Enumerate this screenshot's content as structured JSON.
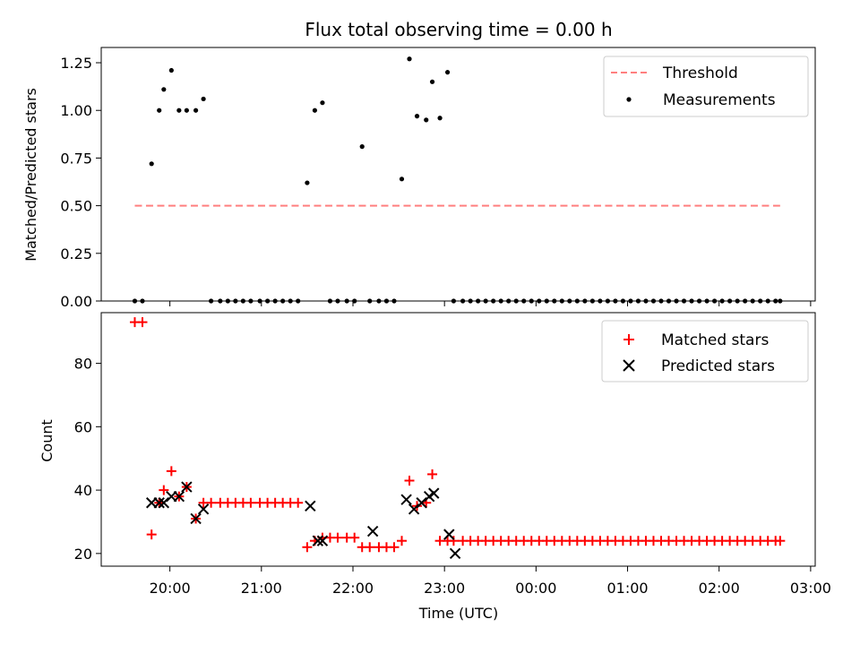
{
  "title": "Flux total observing time = 0.00 h",
  "colors": {
    "threshold": "#ff7f7f",
    "measurement": "#000000",
    "matched": "#ff0000",
    "predicted": "#000000"
  },
  "chart_data": [
    {
      "type": "scatter",
      "ylabel": "Matched/Predicted stars",
      "ylim": [
        0,
        1.33
      ],
      "yticks": [
        0.0,
        0.25,
        0.5,
        0.75,
        1.0,
        1.25
      ],
      "ytick_labels": [
        "0.00",
        "0.25",
        "0.50",
        "0.75",
        "1.00",
        "1.25"
      ],
      "legend_position": "upper right",
      "legend": [
        "Threshold",
        "Measurements"
      ],
      "threshold": {
        "name": "Threshold",
        "value": 0.5,
        "x_start": "19:37",
        "x_end": "02:40"
      },
      "series": [
        {
          "name": "Measurements",
          "x": [
            "19:37",
            "19:42",
            "19:48",
            "19:53",
            "19:56",
            "20:01",
            "20:06",
            "20:11",
            "20:17",
            "20:22",
            "20:27",
            "20:33",
            "20:38",
            "20:43",
            "20:48",
            "20:53",
            "20:59",
            "21:04",
            "21:09",
            "21:14",
            "21:19",
            "21:24",
            "21:30",
            "21:35",
            "21:40",
            "21:45",
            "21:50",
            "21:56",
            "22:01",
            "22:06",
            "22:11",
            "22:17",
            "22:22",
            "22:27",
            "22:32",
            "22:37",
            "22:42",
            "22:48",
            "22:52",
            "22:57",
            "23:02",
            "23:06",
            "23:12",
            "23:17",
            "23:22",
            "23:27",
            "23:32",
            "23:37",
            "23:42",
            "23:47",
            "23:52",
            "23:57",
            "00:02",
            "00:07",
            "00:12",
            "00:17",
            "00:22",
            "00:27",
            "00:32",
            "00:37",
            "00:42",
            "00:47",
            "00:52",
            "00:57",
            "01:02",
            "01:07",
            "01:12",
            "01:17",
            "01:22",
            "01:27",
            "01:32",
            "01:37",
            "01:42",
            "01:47",
            "01:52",
            "01:57",
            "02:02",
            "02:07",
            "02:12",
            "02:17",
            "02:22",
            "02:27",
            "02:32",
            "02:37",
            "02:40"
          ],
          "y": [
            0,
            0,
            0.72,
            1.0,
            1.11,
            1.21,
            1.0,
            1.0,
            1.0,
            1.06,
            0,
            0,
            0,
            0,
            0,
            0,
            0,
            0,
            0,
            0,
            0,
            0,
            0.62,
            1.0,
            1.04,
            0,
            0,
            0,
            0,
            0.81,
            0,
            0,
            0,
            0,
            0.64,
            1.27,
            0.97,
            0.95,
            1.15,
            0.96,
            1.2,
            0,
            0,
            0,
            0,
            0,
            0,
            0,
            0,
            0,
            0,
            0,
            0,
            0,
            0,
            0,
            0,
            0,
            0,
            0,
            0,
            0,
            0,
            0,
            0,
            0,
            0,
            0,
            0,
            0,
            0,
            0,
            0,
            0,
            0,
            0,
            0,
            0,
            0,
            0,
            0,
            0,
            0,
            0,
            0
          ]
        }
      ]
    },
    {
      "type": "scatter",
      "xlabel": "Time (UTC)",
      "ylabel": "Count",
      "ylim": [
        16,
        96
      ],
      "xlim": [
        "19:15",
        "03:03"
      ],
      "yticks": [
        20,
        40,
        60,
        80
      ],
      "xticks": [
        "20:00",
        "21:00",
        "22:00",
        "23:00",
        "00:00",
        "01:00",
        "02:00",
        "03:00"
      ],
      "legend_position": "upper right",
      "legend": [
        "Matched stars",
        "Predicted stars"
      ],
      "series": [
        {
          "name": "Matched stars",
          "x": [
            "19:37",
            "19:42",
            "19:48",
            "19:53",
            "19:56",
            "20:01",
            "20:06",
            "20:11",
            "20:17",
            "20:22",
            "20:27",
            "20:33",
            "20:38",
            "20:43",
            "20:48",
            "20:53",
            "20:59",
            "21:04",
            "21:09",
            "21:14",
            "21:19",
            "21:24",
            "21:30",
            "21:35",
            "21:40",
            "21:45",
            "21:50",
            "21:56",
            "22:01",
            "22:06",
            "22:11",
            "22:17",
            "22:22",
            "22:27",
            "22:32",
            "22:37",
            "22:42",
            "22:48",
            "22:52",
            "22:57",
            "23:02",
            "23:06",
            "23:12",
            "23:17",
            "23:22",
            "23:27",
            "23:32",
            "23:37",
            "23:42",
            "23:47",
            "23:52",
            "23:57",
            "00:02",
            "00:07",
            "00:12",
            "00:17",
            "00:22",
            "00:27",
            "00:32",
            "00:37",
            "00:42",
            "00:47",
            "00:52",
            "00:57",
            "01:02",
            "01:07",
            "01:12",
            "01:17",
            "01:22",
            "01:27",
            "01:32",
            "01:37",
            "01:42",
            "01:47",
            "01:52",
            "01:57",
            "02:02",
            "02:07",
            "02:12",
            "02:17",
            "02:22",
            "02:27",
            "02:32",
            "02:37",
            "02:40"
          ],
          "y": [
            93,
            93,
            26,
            36,
            40,
            46,
            38,
            41,
            31,
            36,
            36,
            36,
            36,
            36,
            36,
            36,
            36,
            36,
            36,
            36,
            36,
            36,
            22,
            24,
            25,
            25,
            25,
            25,
            25,
            22,
            22,
            22,
            22,
            22,
            24,
            43,
            35,
            36,
            45,
            24,
            24,
            24,
            24,
            24,
            24,
            24,
            24,
            24,
            24,
            24,
            24,
            24,
            24,
            24,
            24,
            24,
            24,
            24,
            24,
            24,
            24,
            24,
            24,
            24,
            24,
            24,
            24,
            24,
            24,
            24,
            24,
            24,
            24,
            24,
            24,
            24,
            24,
            24,
            24,
            24,
            24,
            24,
            24,
            24,
            24
          ]
        },
        {
          "name": "Predicted stars",
          "x": [
            "19:48",
            "19:53",
            "19:56",
            "20:01",
            "20:06",
            "20:11",
            "20:17",
            "20:22",
            "21:32",
            "21:37",
            "21:40",
            "22:13",
            "22:35",
            "22:40",
            "22:45",
            "22:50",
            "22:53",
            "23:03",
            "23:07"
          ],
          "y": [
            36,
            36,
            36,
            38,
            38,
            41,
            31,
            34,
            35,
            24,
            24,
            27,
            37,
            34,
            36,
            38,
            39,
            26,
            20
          ]
        }
      ]
    }
  ]
}
